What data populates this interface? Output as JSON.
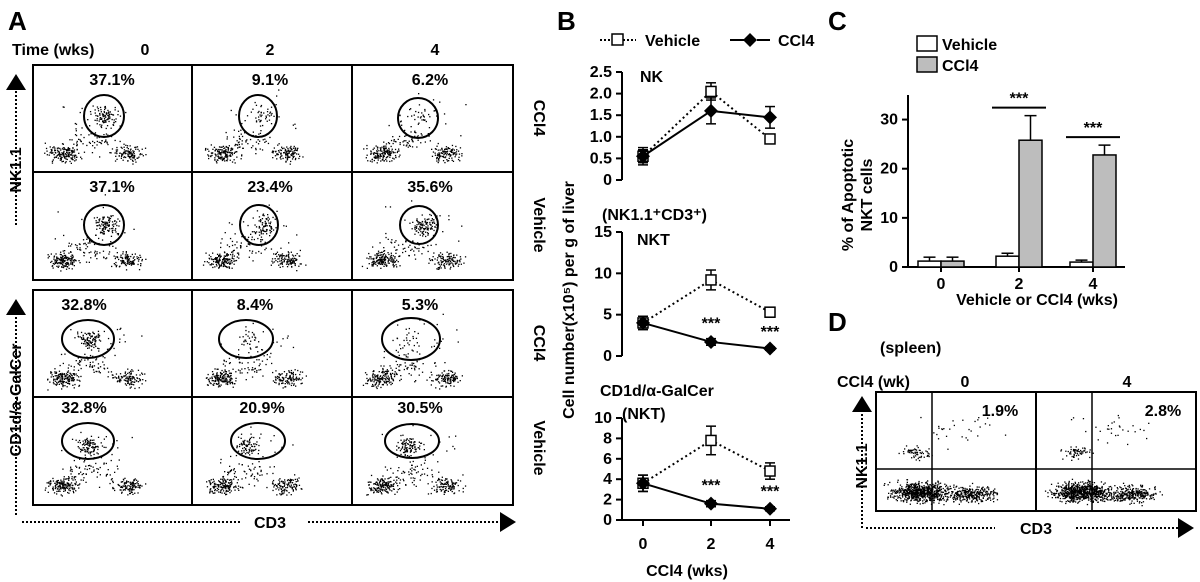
{
  "panel_letters": {
    "a": "A",
    "b": "B",
    "c": "C",
    "d": "D"
  },
  "panel_a": {
    "time_label": "Time (wks)",
    "time_points": [
      "0",
      "2",
      "4"
    ],
    "y_label_top": "NK1.1",
    "y_label_bottom": "CD1d/a-GalCer",
    "x_label": "CD3",
    "row_labels": [
      "CCl4",
      "Vehicle",
      "CCl4",
      "Vehicle"
    ],
    "percentages": [
      [
        "37.1%",
        "9.1%",
        "6.2%"
      ],
      [
        "37.1%",
        "23.4%",
        "35.6%"
      ],
      [
        "32.8%",
        "8.4%",
        "5.3%"
      ],
      [
        "32.8%",
        "20.9%",
        "30.5%"
      ]
    ]
  },
  "panel_b": {
    "legend": {
      "vehicle": "Vehicle",
      "ccl4": "CCl4"
    },
    "y_label": "Cell number(x10⁵) per g of liver",
    "x_label": "CCl4 (wks)",
    "sig_label": "***"
  },
  "panel_c": {
    "legend": {
      "vehicle": "Vehicle",
      "ccl4": "CCl4"
    },
    "y_label_line1": "% of Apoptotic",
    "y_label_line2": "NKT cells",
    "x_label": "Vehicle or CCl4 (wks)",
    "sig_label": "***"
  },
  "panel_d": {
    "tissue_label": "(spleen)",
    "row_header": "CCl4 (wk)",
    "time_points": [
      "0",
      "4"
    ],
    "percentages": [
      "1.9%",
      "2.8%"
    ],
    "y_label": "NK1.1",
    "x_label": "CD3"
  },
  "colors": {
    "vehicle_bar": "#ffffff",
    "ccl4_bar": "#bdbdbd",
    "ink": "#000000"
  },
  "chart_data": [
    {
      "type": "line",
      "title": "NK",
      "x": [
        0,
        2,
        4
      ],
      "ylim": [
        0,
        2.5
      ],
      "yticks": [
        "0",
        "0.5",
        "1.0",
        "1.5",
        "2.0",
        "2.5"
      ],
      "series": [
        {
          "name": "Vehicle",
          "values": [
            0.55,
            2.05,
            0.95
          ],
          "errors": [
            0.15,
            0.2,
            0.1
          ]
        },
        {
          "name": "CCl4",
          "values": [
            0.55,
            1.6,
            1.45
          ],
          "errors": [
            0.2,
            0.3,
            0.25
          ]
        }
      ],
      "significance": []
    },
    {
      "type": "line",
      "title": "NKT",
      "subtitle": "(NK1.1⁺CD3⁺)",
      "x": [
        0,
        2,
        4
      ],
      "ylim": [
        0,
        15
      ],
      "yticks": [
        "0",
        "5",
        "10",
        "15"
      ],
      "series": [
        {
          "name": "Vehicle",
          "values": [
            4.0,
            9.2,
            5.3
          ],
          "errors": [
            0.8,
            1.2,
            0.6
          ]
        },
        {
          "name": "CCl4",
          "values": [
            4.0,
            1.7,
            0.9
          ],
          "errors": [
            0.8,
            0.4,
            0.2
          ]
        }
      ],
      "significance": [
        {
          "x": 2,
          "label": "***"
        },
        {
          "x": 4,
          "label": "***"
        }
      ]
    },
    {
      "type": "line",
      "title": "CD1d/α-GalCer",
      "subtitle": "(NKT)",
      "x": [
        0,
        2,
        4
      ],
      "ylim": [
        0,
        10
      ],
      "yticks": [
        "0",
        "2",
        "4",
        "6",
        "8",
        "10"
      ],
      "series": [
        {
          "name": "Vehicle",
          "values": [
            3.6,
            7.8,
            4.8
          ],
          "errors": [
            0.8,
            1.4,
            0.8
          ]
        },
        {
          "name": "CCl4",
          "values": [
            3.6,
            1.6,
            1.1
          ],
          "errors": [
            0.8,
            0.3,
            0.2
          ]
        }
      ],
      "significance": [
        {
          "x": 2,
          "label": "***"
        },
        {
          "x": 4,
          "label": "***"
        }
      ]
    },
    {
      "type": "bar",
      "categories": [
        "0",
        "2",
        "4"
      ],
      "ylim": [
        0,
        35
      ],
      "yticks": [
        "0",
        "10",
        "20",
        "30"
      ],
      "series": [
        {
          "name": "Vehicle",
          "values": [
            1.2,
            2.2,
            1.0
          ],
          "errors": [
            0.8,
            0.6,
            0.4
          ]
        },
        {
          "name": "CCl4",
          "values": [
            1.2,
            25.8,
            22.8
          ],
          "errors": [
            0.8,
            5.0,
            2.0
          ]
        }
      ],
      "significance": [
        {
          "category": "2",
          "label": "***"
        },
        {
          "category": "4",
          "label": "***"
        }
      ]
    }
  ]
}
